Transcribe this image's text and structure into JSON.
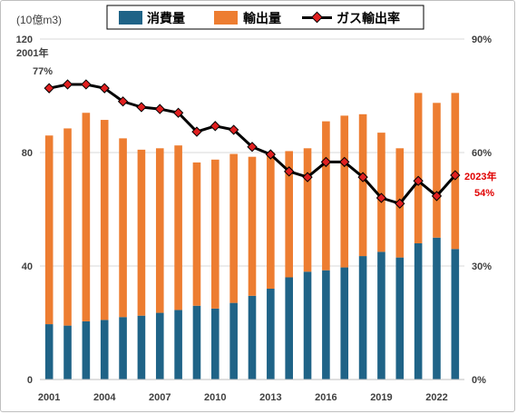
{
  "chart_data": {
    "type": "bar",
    "stacked": true,
    "unit_label": "(10億m3)",
    "years": [
      2001,
      2002,
      2003,
      2004,
      2005,
      2006,
      2007,
      2008,
      2009,
      2010,
      2011,
      2012,
      2013,
      2014,
      2015,
      2016,
      2017,
      2018,
      2019,
      2020,
      2021,
      2022,
      2023
    ],
    "x_tick_labels": [
      "2001",
      "2004",
      "2007",
      "2010",
      "2013",
      "2016",
      "2019",
      "2022"
    ],
    "left_axis": {
      "min": 0,
      "max": 120,
      "ticks": [
        0,
        40,
        80,
        120
      ]
    },
    "right_axis": {
      "min": 0,
      "max": 90,
      "ticks": [
        "0%",
        "30%",
        "60%",
        "90%"
      ]
    },
    "series": [
      {
        "name": "消費量",
        "color": "#1f6387",
        "values": [
          19.5,
          19,
          20.5,
          21,
          22,
          22.5,
          23.5,
          24.5,
          26,
          25,
          27,
          29.5,
          32,
          36,
          38,
          38.5,
          39.5,
          43.5,
          45,
          43,
          48,
          50,
          46
        ]
      },
      {
        "name": "輸出量",
        "color": "#ed7d31",
        "values": [
          66.5,
          69.5,
          73.5,
          70.5,
          63,
          58.5,
          58,
          58,
          50.5,
          52.5,
          52.5,
          49,
          48,
          44.5,
          43.5,
          52.5,
          53.5,
          50,
          42,
          38.5,
          53,
          47.5,
          55
        ]
      },
      {
        "name": "ガス輸出率",
        "type": "line",
        "axis": "right",
        "color": "#000000",
        "marker_color": "#e02020",
        "values": [
          77,
          78,
          78,
          77,
          73.5,
          72,
          71.5,
          70.5,
          65.5,
          67,
          66,
          61.5,
          59.5,
          55,
          53.5,
          57.5,
          57.5,
          53.5,
          48,
          46.5,
          52.5,
          48.5,
          54
        ]
      }
    ],
    "annotations": [
      {
        "label": "2001年",
        "value_label": "77%",
        "color": "#404040"
      },
      {
        "label": "2023年",
        "value_label": "54%",
        "color": "#e00000"
      }
    ],
    "legend_position": "top-center",
    "grid": "horizontal"
  }
}
